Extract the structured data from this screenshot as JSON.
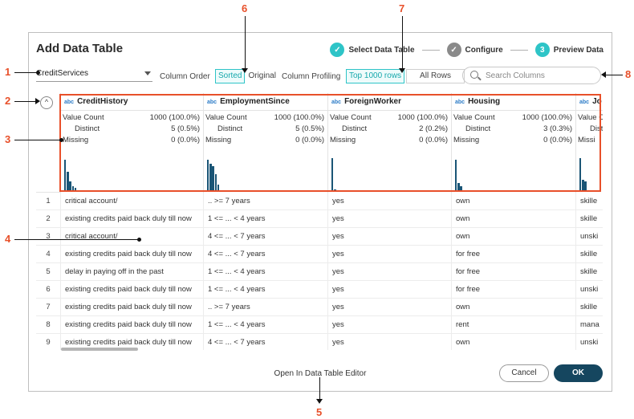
{
  "dialog": {
    "title": "Add Data Table",
    "steps": [
      {
        "num": "✓",
        "label": "Select Data Table"
      },
      {
        "num": "✓",
        "label": "Configure"
      },
      {
        "num": "3",
        "label": "Preview Data"
      }
    ]
  },
  "toolbar": {
    "datasource": "CreditServices",
    "column_order_label": "Column Order",
    "sorted_label": "Sorted",
    "original_label": "Original",
    "column_profiling_label": "Column Profiling",
    "top_rows_label": "Top 1000 rows",
    "all_rows_label": "All Rows",
    "search_placeholder": "Search Columns",
    "collapse_glyph": "^"
  },
  "columns": [
    {
      "type": "abc",
      "name": "CreditHistory",
      "value_count": "1000 (100.0%)",
      "distinct": "5 (0.5%)",
      "missing": "0 (0.0%)"
    },
    {
      "type": "abc",
      "name": "EmploymentSince",
      "value_count": "1000 (100.0%)",
      "distinct": "5 (0.5%)",
      "missing": "0 (0.0%)"
    },
    {
      "type": "abc",
      "name": "ForeignWorker",
      "value_count": "1000 (100.0%)",
      "distinct": "2 (0.2%)",
      "missing": "0 (0.0%)"
    },
    {
      "type": "abc",
      "name": "Housing",
      "value_count": "1000 (100.0%)",
      "distinct": "3 (0.3%)",
      "missing": "0 (0.0%)"
    },
    {
      "type": "abc",
      "name": "Jo",
      "value_count": "",
      "distinct": "",
      "missing": ""
    }
  ],
  "profile_labels": {
    "value_count": "Value Count",
    "distinct": "Distinct",
    "missing": "Missi"
  },
  "profile_labels_full": {
    "missing": "Missing",
    "distinct_short": "Disti"
  },
  "histograms": [
    [
      0.82,
      0.5,
      0.26,
      0.13,
      0.08
    ],
    [
      0.82,
      0.7,
      0.64,
      0.44,
      0.16
    ],
    [
      0.85,
      0.04
    ],
    [
      0.82,
      0.2,
      0.12
    ],
    [
      0.85,
      0.3,
      0.25
    ]
  ],
  "rows": [
    {
      "n": "1",
      "c1": "critical account/",
      "c2": ".. >= 7 years",
      "c3": "yes",
      "c4": "own",
      "c5": "skille"
    },
    {
      "n": "2",
      "c1": "existing credits paid back duly till now",
      "c2": "1 <= ... < 4 years",
      "c3": "yes",
      "c4": "own",
      "c5": "skille"
    },
    {
      "n": "3",
      "c1": "critical account/",
      "c2": "4 <= ... < 7 years",
      "c3": "yes",
      "c4": "own",
      "c5": "unski"
    },
    {
      "n": "4",
      "c1": "existing credits paid back duly till now",
      "c2": "4 <= ... < 7 years",
      "c3": "yes",
      "c4": "for free",
      "c5": "skille"
    },
    {
      "n": "5",
      "c1": "delay in paying off in the past",
      "c2": "1 <= ... < 4 years",
      "c3": "yes",
      "c4": "for free",
      "c5": "skille"
    },
    {
      "n": "6",
      "c1": "existing credits paid back duly till now",
      "c2": "1 <= ... < 4 years",
      "c3": "yes",
      "c4": "for free",
      "c5": "unski"
    },
    {
      "n": "7",
      "c1": "existing credits paid back duly till now",
      "c2": ".. >= 7 years",
      "c3": "yes",
      "c4": "own",
      "c5": "skille"
    },
    {
      "n": "8",
      "c1": "existing credits paid back duly till now",
      "c2": "1 <= ... < 4 years",
      "c3": "yes",
      "c4": "rent",
      "c5": "mana"
    },
    {
      "n": "9",
      "c1": "existing credits paid back duly till now",
      "c2": "4 <= ... < 7 years",
      "c3": "yes",
      "c4": "own",
      "c5": "unski"
    }
  ],
  "footer": {
    "open_editor": "Open In Data Table Editor",
    "cancel": "Cancel",
    "ok": "OK"
  },
  "callouts": [
    "1",
    "2",
    "3",
    "4",
    "5",
    "6",
    "7",
    "8"
  ],
  "colors": {
    "accent": "#2ec4c7",
    "primary": "#15465f",
    "callout": "#e8502a",
    "bar": "#1a5576"
  }
}
